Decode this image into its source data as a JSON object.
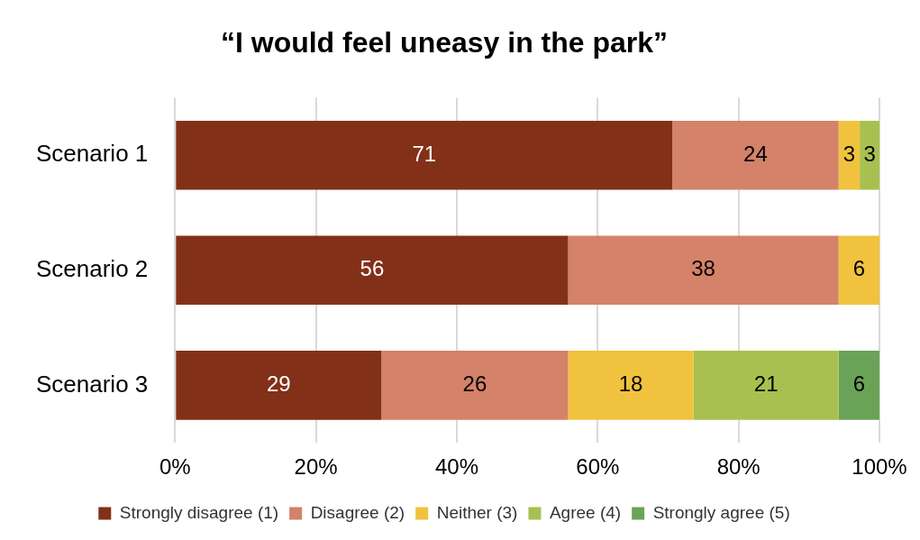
{
  "chart_data": {
    "type": "bar",
    "orientation": "horizontal",
    "stacked": true,
    "title": "“I would feel uneasy in the park”",
    "categories": [
      "Scenario 1",
      "Scenario 2",
      "Scenario 3"
    ],
    "series": [
      {
        "name": "Strongly disagree (1)",
        "color": "#833019",
        "values": [
          70.6,
          55.8,
          29.3
        ],
        "value_labels": [
          "71",
          "56",
          "29"
        ]
      },
      {
        "name": "Disagree (2)",
        "color": "#d4826a",
        "values": [
          23.6,
          38.4,
          26.5
        ],
        "value_labels": [
          "24",
          "38",
          "26"
        ]
      },
      {
        "name": "Neither (3)",
        "color": "#f0c23e",
        "values": [
          3.0,
          5.8,
          17.8
        ],
        "value_labels": [
          "3",
          "6",
          "18"
        ]
      },
      {
        "name": "Agree (4)",
        "color": "#a8c050",
        "values": [
          2.8,
          null,
          20.6
        ],
        "value_labels": [
          "3",
          null,
          "21"
        ]
      },
      {
        "name": "Strongly agree (5)",
        "color": "#6aa358",
        "values": [
          null,
          null,
          5.8
        ],
        "value_labels": [
          null,
          null,
          "6"
        ]
      }
    ],
    "xlim": [
      0,
      100
    ],
    "xticks": [
      {
        "value": 0,
        "label": "0%"
      },
      {
        "value": 20,
        "label": "20%"
      },
      {
        "value": 40,
        "label": "40%"
      },
      {
        "value": 60,
        "label": "60%"
      },
      {
        "value": 80,
        "label": "80%"
      },
      {
        "value": 100,
        "label": "100%"
      }
    ],
    "grid": "x",
    "legend": "bottom"
  }
}
